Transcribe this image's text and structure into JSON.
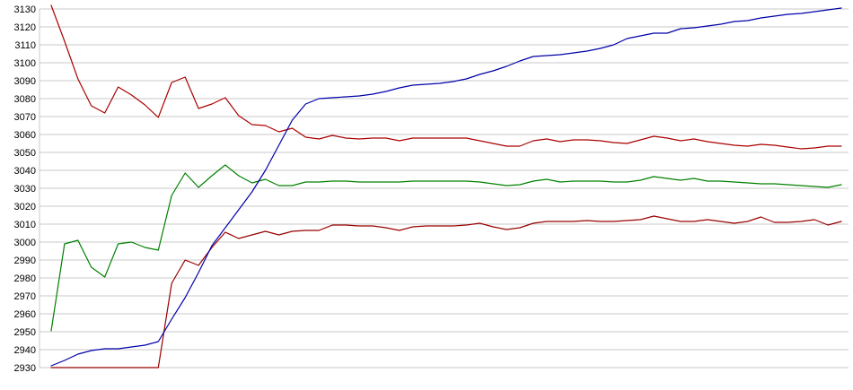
{
  "chart_data": {
    "type": "line",
    "title": "",
    "xlabel": "",
    "ylabel": "",
    "ylim": [
      2930,
      3130
    ],
    "grid": true,
    "legend_position": "none",
    "x_axis": {
      "tick_labels_visible": false,
      "n_points": 60
    },
    "y_axis": {
      "tick_step": 10,
      "ticks": [
        3130,
        3120,
        3110,
        3100,
        3090,
        3080,
        3070,
        3060,
        3050,
        3040,
        3030,
        3020,
        3010,
        3000,
        2990,
        2980,
        2970,
        2960,
        2950,
        2940,
        2930
      ]
    },
    "colors": {
      "background": "#ffffff",
      "grid": "#c8c8c8",
      "axis": "#c8c8c8",
      "tick_label": "#000000"
    },
    "series": [
      {
        "name": "red-line",
        "color": "#aa0000",
        "values": [
          3132,
          3112,
          3091,
          3076,
          3072,
          3086.5,
          3082,
          3076.5,
          3069.5,
          3089,
          3092,
          3074.5,
          3077,
          3080.5,
          3070.5,
          3065.5,
          3065,
          3061.5,
          3063.5,
          3058.5,
          3057.5,
          3059.5,
          3058,
          3057.5,
          3058,
          3058,
          3056.5,
          3058,
          3058,
          3058,
          3058,
          3058,
          3056.5,
          3055,
          3053.5,
          3053.5,
          3056.5,
          3057.5,
          3056,
          3057,
          3057,
          3056.5,
          3055.5,
          3055,
          3057,
          3059,
          3058,
          3056.5,
          3057.5,
          3056,
          3055,
          3054,
          3053.5,
          3054.5,
          3054,
          3053,
          3052,
          3052.5,
          3053.5,
          3053.5
        ]
      },
      {
        "name": "dark-red-line",
        "color": "#990000",
        "values": [
          2930,
          2930,
          2930,
          2930,
          2930,
          2930,
          2930,
          2930,
          2930,
          2977,
          2990,
          2987,
          2997,
          3005.5,
          3002,
          3004,
          3006,
          3004,
          3006,
          3006.5,
          3006.5,
          3009.5,
          3009.5,
          3009,
          3009,
          3008,
          3006.5,
          3008.5,
          3009,
          3009,
          3009,
          3009.5,
          3010.5,
          3008.5,
          3007,
          3008,
          3010.5,
          3011.5,
          3011.5,
          3011.5,
          3012,
          3011.5,
          3011.5,
          3012,
          3012.5,
          3014.5,
          3013,
          3011.5,
          3011.5,
          3012.5,
          3011.5,
          3010.5,
          3011.5,
          3014,
          3011,
          3011,
          3011.5,
          3012.5,
          3009.5,
          3011.5
        ]
      },
      {
        "name": "green-line",
        "color": "#008000",
        "values": [
          2950.5,
          2999,
          3001,
          2986,
          2980.5,
          2999,
          3000,
          2997,
          2995.5,
          3026,
          3038.5,
          3030.5,
          3037,
          3043,
          3037,
          3033,
          3035,
          3031.5,
          3031.5,
          3033.5,
          3033.5,
          3034,
          3034,
          3033.5,
          3033.5,
          3033.5,
          3033.5,
          3034,
          3034,
          3034,
          3034,
          3034,
          3033.5,
          3032.5,
          3031.5,
          3032,
          3034,
          3035,
          3033.5,
          3034,
          3034,
          3034,
          3033.5,
          3033.5,
          3034.5,
          3036.5,
          3035.5,
          3034.5,
          3035.5,
          3034,
          3034,
          3033.5,
          3033,
          3032.5,
          3032.5,
          3032,
          3031.5,
          3031,
          3030.5,
          3032
        ]
      },
      {
        "name": "blue-line",
        "color": "#0000aa",
        "values": [
          2931,
          2934,
          2937.5,
          2939.5,
          2940.5,
          2940.5,
          2941.5,
          2942.5,
          2944.5,
          2957,
          2969,
          2983,
          2998,
          3008,
          3018,
          3028,
          3040,
          3054,
          3068,
          3077,
          3080,
          3080.5,
          3081,
          3081.5,
          3082.5,
          3084,
          3086,
          3087.5,
          3088,
          3088.5,
          3089.5,
          3091,
          3093.5,
          3095.5,
          3098,
          3101,
          3103.5,
          3104,
          3104.5,
          3105.5,
          3106.5,
          3108,
          3110,
          3113.5,
          3115,
          3116.5,
          3116.5,
          3119,
          3119.5,
          3120.5,
          3121.5,
          3123,
          3123.5,
          3125,
          3126,
          3127,
          3127.5,
          3128.5,
          3129.5,
          3130.5
        ]
      }
    ]
  }
}
